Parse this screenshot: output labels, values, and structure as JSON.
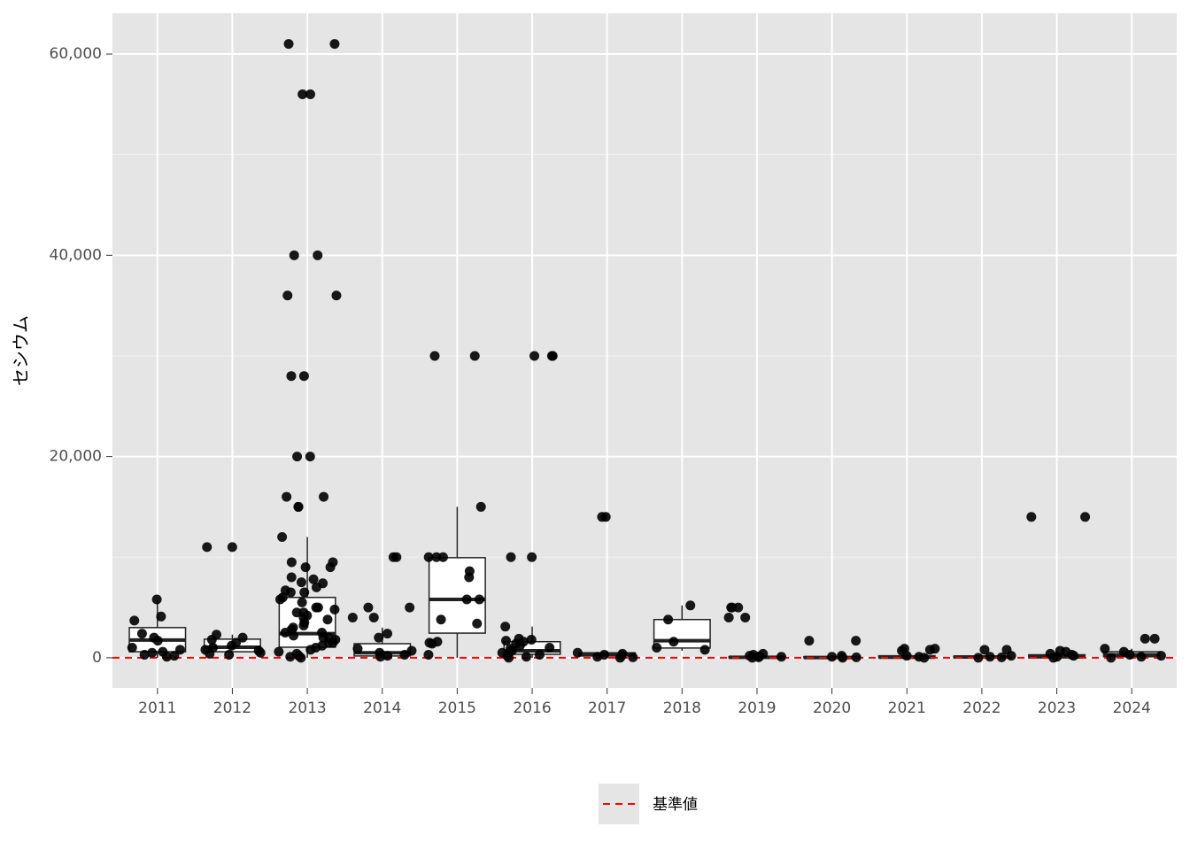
{
  "chart_data": {
    "type": "box",
    "y_label": "セシウム",
    "categories": [
      "2011",
      "2012",
      "2013",
      "2014",
      "2015",
      "2016",
      "2017",
      "2018",
      "2019",
      "2020",
      "2021",
      "2022",
      "2023",
      "2024"
    ],
    "boxes": [
      {
        "min": 0,
        "q1": 600,
        "median": 1760,
        "q3": 3000,
        "max": 5700
      },
      {
        "min": 300,
        "q1": 600,
        "median": 1050,
        "q3": 1850,
        "max": 2300
      },
      {
        "min": 0,
        "q1": 1050,
        "median": 2400,
        "q3": 6000,
        "max": 12000
      },
      {
        "min": 0,
        "q1": 180,
        "median": 500,
        "q3": 1400,
        "max": 3000
      },
      {
        "min": 0,
        "q1": 2450,
        "median": 5800,
        "q3": 9950,
        "max": 15000
      },
      {
        "min": 0,
        "q1": 350,
        "median": 700,
        "q3": 1600,
        "max": 3100
      },
      {
        "min": 0,
        "q1": 180,
        "median": 350,
        "q3": 500,
        "max": 700
      },
      {
        "min": 700,
        "q1": 970,
        "median": 1700,
        "q3": 3800,
        "max": 5200
      },
      {
        "min": 0,
        "q1": 0,
        "median": 50,
        "q3": 90,
        "max": 400
      },
      {
        "min": 0,
        "q1": 0,
        "median": 30,
        "q3": 100,
        "max": 200
      },
      {
        "min": 0,
        "q1": 0,
        "median": 60,
        "q3": 200,
        "max": 400
      },
      {
        "min": 0,
        "q1": 0,
        "median": 80,
        "q3": 150,
        "max": 300
      },
      {
        "min": 0,
        "q1": 0,
        "median": 100,
        "q3": 300,
        "max": 700
      },
      {
        "min": 0,
        "q1": 100,
        "median": 300,
        "q3": 600,
        "max": 900
      }
    ],
    "points": [
      [
        5800,
        4100,
        3700,
        2400,
        2000,
        1700,
        1000,
        800,
        600,
        500,
        300,
        200,
        100
      ],
      [
        11000,
        11000,
        2300,
        2000,
        1800,
        1500,
        1200,
        1000,
        800,
        700,
        500,
        400,
        300
      ],
      [
        61000,
        61000,
        56000,
        56000,
        40000,
        40000,
        36000,
        36000,
        28000,
        28000,
        20000,
        20000,
        16000,
        16000,
        15000,
        15000,
        12000,
        9500,
        9500,
        9000,
        9000,
        8000,
        7800,
        7500,
        7400,
        7000,
        6700,
        6500,
        6500,
        6000,
        5800,
        5500,
        5000,
        5000,
        4800,
        4500,
        4500,
        4200,
        4000,
        3800,
        3500,
        3200,
        3000,
        2800,
        2500,
        2500,
        2200,
        2000,
        2000,
        1800,
        1500,
        1500,
        1200,
        1000,
        800,
        600,
        400,
        200,
        100,
        0
      ],
      [
        10000,
        10000,
        5000,
        5000,
        4000,
        4000,
        2400,
        2000,
        900,
        700,
        500,
        300,
        200,
        100
      ],
      [
        30000,
        30000,
        15000,
        10000,
        10000,
        10000,
        8600,
        8000,
        5800,
        5800,
        3800,
        3400,
        1600,
        1500,
        1400,
        300
      ],
      [
        30000,
        30000,
        30000,
        10000,
        10000,
        3100,
        1900,
        1800,
        1700,
        1600,
        1400,
        1200,
        1000,
        900,
        700,
        500,
        300,
        200,
        100,
        0
      ],
      [
        14000,
        14000,
        500,
        400,
        300,
        200,
        100,
        50,
        0
      ],
      [
        5200,
        3800,
        1600,
        1000,
        800
      ],
      [
        5000,
        5000,
        5000,
        4000,
        4000,
        400,
        300,
        200,
        150,
        100,
        50,
        0
      ],
      [
        1700,
        1700,
        200,
        100,
        50,
        0
      ],
      [
        900,
        900,
        800,
        700,
        200,
        100,
        0
      ],
      [
        800,
        800,
        200,
        100,
        50,
        0
      ],
      [
        14000,
        14000,
        700,
        600,
        400,
        300,
        200,
        100,
        0
      ],
      [
        1900,
        1900,
        900,
        600,
        300,
        200,
        100,
        0
      ]
    ],
    "ylim": [
      -3000,
      64050
    ],
    "yticks": [
      {
        "value": 0,
        "label": "0"
      },
      {
        "value": 20000,
        "label": "20,000"
      },
      {
        "value": 40000,
        "label": "40,000"
      },
      {
        "value": 60000,
        "label": "60,000"
      }
    ],
    "minor_yticks": [
      10000,
      30000,
      50000
    ],
    "grid": true,
    "hline": {
      "name": "基準値",
      "value": 0,
      "color": "#ff0000"
    },
    "legend": "bottom"
  }
}
